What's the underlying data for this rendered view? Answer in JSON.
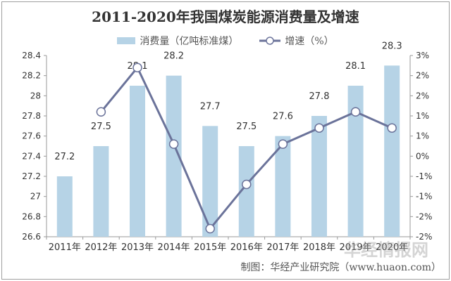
{
  "chart_data": {
    "type": "bar+line",
    "title": "2011-2020年我国煤炭能源消费量及增速",
    "categories": [
      "2011年",
      "2012年",
      "2013年",
      "2014年",
      "2015年",
      "2016年",
      "2017年",
      "2018年",
      "2019年",
      "2020年"
    ],
    "series": [
      {
        "name": "消费量（亿吨标准煤）",
        "type": "bar",
        "axis": "left",
        "values": [
          27.2,
          27.5,
          28.1,
          28.2,
          27.7,
          27.5,
          27.6,
          27.8,
          28.1,
          28.3
        ],
        "labels": [
          "27.2",
          "27.5",
          "28.1",
          "28.2",
          "27.7",
          "27.5",
          "27.6",
          "27.8",
          "28.1",
          "28.3"
        ],
        "color": "#b6d3e6"
      },
      {
        "name": "增速（%）",
        "type": "line",
        "axis": "right",
        "values": [
          null,
          1.1,
          2.2,
          0.3,
          -1.8,
          -0.7,
          0.3,
          0.7,
          1.1,
          0.7
        ],
        "color": "#6b739a"
      }
    ],
    "y_left": {
      "range": [
        26.6,
        28.4
      ],
      "ticks": [
        "26.6",
        "26.8",
        "27",
        "27.2",
        "27.4",
        "27.6",
        "27.8",
        "28",
        "28.2",
        "28.4"
      ]
    },
    "y_right": {
      "range": [
        -2.0,
        2.5
      ],
      "ticks": [
        "-2%",
        "-2%",
        "-1%",
        "-1%",
        "0%",
        "1%",
        "1%",
        "2%",
        "2%",
        "3%"
      ]
    },
    "grid": false,
    "legend": "top"
  },
  "footer": "制图：华经产业研究院（www.huaon.com）",
  "watermark": "华经情报网 huaon.com"
}
